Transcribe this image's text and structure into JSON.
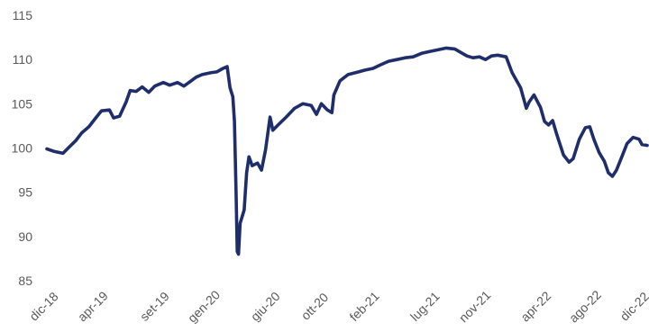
{
  "chart_data": {
    "type": "line",
    "title": "",
    "xlabel": "",
    "ylabel": "",
    "ylim": [
      85,
      115
    ],
    "yticks": [
      85,
      90,
      95,
      100,
      105,
      110,
      115
    ],
    "grid": false,
    "legend": "none",
    "x_tick_labels": [
      "dic-18",
      "apr-19",
      "set-19",
      "gen-20",
      "giu-20",
      "ott-20",
      "feb-21",
      "lug-21",
      "nov-21",
      "apr-22",
      "ago-22",
      "dic-22"
    ],
    "x_tick_dates": [
      "2018-12",
      "2019-04",
      "2019-09",
      "2020-01",
      "2020-06",
      "2020-10",
      "2021-02",
      "2021-07",
      "2021-11",
      "2022-04",
      "2022-08",
      "2022-12"
    ],
    "series": [
      {
        "color": "#1f2d6b",
        "points": [
          [
            "2018-12-01",
            99.9
          ],
          [
            "2018-12-20",
            99.6
          ],
          [
            "2019-01-10",
            99.4
          ],
          [
            "2019-01-25",
            100.1
          ],
          [
            "2019-02-10",
            100.8
          ],
          [
            "2019-02-25",
            101.7
          ],
          [
            "2019-03-15",
            102.4
          ],
          [
            "2019-03-30",
            103.3
          ],
          [
            "2019-04-15",
            104.2
          ],
          [
            "2019-05-05",
            104.3
          ],
          [
            "2019-05-15",
            103.4
          ],
          [
            "2019-05-30",
            103.6
          ],
          [
            "2019-06-15",
            105.2
          ],
          [
            "2019-06-25",
            106.5
          ],
          [
            "2019-07-10",
            106.4
          ],
          [
            "2019-07-25",
            106.9
          ],
          [
            "2019-08-10",
            106.3
          ],
          [
            "2019-08-25",
            107.0
          ],
          [
            "2019-09-15",
            107.4
          ],
          [
            "2019-10-01",
            107.1
          ],
          [
            "2019-10-20",
            107.4
          ],
          [
            "2019-11-05",
            107.0
          ],
          [
            "2019-11-20",
            107.5
          ],
          [
            "2019-12-05",
            108.0
          ],
          [
            "2019-12-20",
            108.3
          ],
          [
            "2020-01-10",
            108.5
          ],
          [
            "2020-01-25",
            108.6
          ],
          [
            "2020-02-10",
            109.0
          ],
          [
            "2020-02-20",
            109.2
          ],
          [
            "2020-02-27",
            106.8
          ],
          [
            "2020-03-05",
            105.8
          ],
          [
            "2020-03-09",
            103.0
          ],
          [
            "2020-03-13",
            95.0
          ],
          [
            "2020-03-16",
            88.3
          ],
          [
            "2020-03-19",
            88.0
          ],
          [
            "2020-03-23",
            91.5
          ],
          [
            "2020-04-02",
            93.0
          ],
          [
            "2020-04-08",
            97.2
          ],
          [
            "2020-04-14",
            99.0
          ],
          [
            "2020-04-22",
            98.0
          ],
          [
            "2020-05-05",
            98.3
          ],
          [
            "2020-05-15",
            97.5
          ],
          [
            "2020-05-25",
            99.8
          ],
          [
            "2020-06-05",
            103.5
          ],
          [
            "2020-06-12",
            102.0
          ],
          [
            "2020-06-25",
            102.6
          ],
          [
            "2020-07-15",
            103.5
          ],
          [
            "2020-08-05",
            104.5
          ],
          [
            "2020-08-25",
            105.0
          ],
          [
            "2020-09-15",
            104.8
          ],
          [
            "2020-09-28",
            103.8
          ],
          [
            "2020-10-10",
            105.0
          ],
          [
            "2020-10-25",
            104.3
          ],
          [
            "2020-11-05",
            104.0
          ],
          [
            "2020-11-10",
            106.0
          ],
          [
            "2020-11-25",
            107.6
          ],
          [
            "2020-12-15",
            108.3
          ],
          [
            "2021-01-10",
            108.6
          ],
          [
            "2021-01-25",
            108.8
          ],
          [
            "2021-02-15",
            109.0
          ],
          [
            "2021-03-05",
            109.4
          ],
          [
            "2021-03-25",
            109.8
          ],
          [
            "2021-04-15",
            110.0
          ],
          [
            "2021-05-05",
            110.2
          ],
          [
            "2021-05-25",
            110.3
          ],
          [
            "2021-06-15",
            110.7
          ],
          [
            "2021-07-05",
            110.9
          ],
          [
            "2021-07-25",
            111.1
          ],
          [
            "2021-08-15",
            111.3
          ],
          [
            "2021-09-05",
            111.2
          ],
          [
            "2021-09-20",
            110.8
          ],
          [
            "2021-10-05",
            110.4
          ],
          [
            "2021-10-20",
            110.2
          ],
          [
            "2021-11-05",
            110.3
          ],
          [
            "2021-11-20",
            110.0
          ],
          [
            "2021-12-05",
            110.4
          ],
          [
            "2021-12-20",
            110.5
          ],
          [
            "2022-01-10",
            110.3
          ],
          [
            "2022-01-25",
            108.5
          ],
          [
            "2022-02-15",
            106.8
          ],
          [
            "2022-03-01",
            104.5
          ],
          [
            "2022-03-08",
            105.2
          ],
          [
            "2022-03-20",
            106.0
          ],
          [
            "2022-04-05",
            104.6
          ],
          [
            "2022-04-15",
            103.0
          ],
          [
            "2022-04-25",
            102.6
          ],
          [
            "2022-05-05",
            103.1
          ],
          [
            "2022-05-15",
            101.6
          ],
          [
            "2022-06-01",
            99.2
          ],
          [
            "2022-06-15",
            98.4
          ],
          [
            "2022-06-25",
            98.8
          ],
          [
            "2022-07-10",
            101.0
          ],
          [
            "2022-07-25",
            102.3
          ],
          [
            "2022-08-05",
            102.4
          ],
          [
            "2022-08-15",
            101.0
          ],
          [
            "2022-08-28",
            99.5
          ],
          [
            "2022-09-10",
            98.5
          ],
          [
            "2022-09-20",
            97.2
          ],
          [
            "2022-09-30",
            96.8
          ],
          [
            "2022-10-10",
            97.5
          ],
          [
            "2022-10-25",
            99.2
          ],
          [
            "2022-11-05",
            100.5
          ],
          [
            "2022-11-20",
            101.2
          ],
          [
            "2022-12-05",
            101.0
          ],
          [
            "2022-12-12",
            100.4
          ],
          [
            "2022-12-25",
            100.3
          ]
        ]
      }
    ]
  }
}
